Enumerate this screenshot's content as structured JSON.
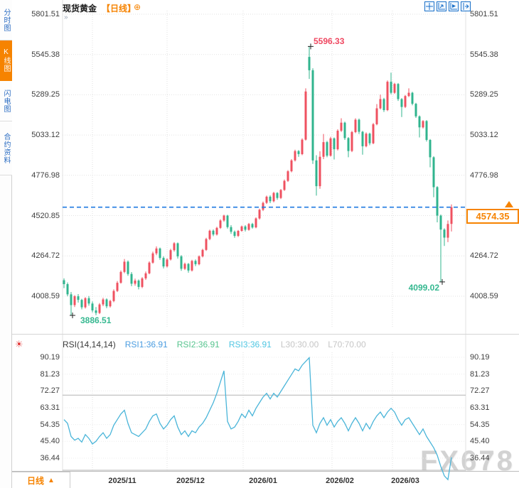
{
  "header": {
    "symbol": "现货黄金",
    "period_tag": "【日线】",
    "plus_icon": "⊕",
    "collapse_icon": "»"
  },
  "toolbar": {
    "icons": [
      "crosshair-pan-icon",
      "auto-scale-icon",
      "chart-forward-icon",
      "shift-right-icon"
    ]
  },
  "sidebar": {
    "tabs": [
      {
        "label": "分时图",
        "selected": false
      },
      {
        "label": "K线图",
        "selected": true
      },
      {
        "label": "闪电图",
        "selected": false
      },
      {
        "label": "合约资料",
        "selected": false
      }
    ]
  },
  "price_tag": {
    "value": "4574.35",
    "color": "#f68300"
  },
  "annotations": {
    "high": "5596.33",
    "low": "4099.02",
    "min": "3886.51"
  },
  "rsi_header": {
    "title": "RSI(14,14,14)",
    "rsi1": "RSI1:36.91",
    "rsi2": "RSI2:36.91",
    "rsi3": "RSI3:36.91",
    "l30": "L30:30.00",
    "l70": "L70:70.00"
  },
  "footer": {
    "period_label": "日线",
    "arrow": "▲"
  },
  "watermark": "FX678",
  "colors": {
    "up": "#ef5160",
    "down": "#30b48e",
    "rsi_line": "#4ab5d9",
    "accent_orange": "#f68300",
    "dashed_price_line": "#1f7ae0",
    "grid": "#e2e2e2",
    "ref_line": "#b4b4b4"
  },
  "chart_data": [
    {
      "type": "candlestick",
      "title": "现货黄金 日线",
      "y_ticks": [
        "5801.51",
        "5545.38",
        "5289.25",
        "5033.12",
        "4776.98",
        "4520.85",
        "4264.72",
        "4008.59"
      ],
      "x_ticks": [
        "2025/11",
        "2025/12",
        "2026/01",
        "2026/02",
        "2026/03"
      ],
      "current_price": 4574.35,
      "up_color_convention": "red-up-green-down",
      "marked_points": [
        {
          "index": 69,
          "field": "h",
          "value": 5596.33,
          "kind": "high"
        },
        {
          "index": 106,
          "field": "l",
          "value": 4099.02,
          "kind": "low"
        },
        {
          "index": 2,
          "field": "l",
          "value": 3886.51,
          "kind": "min"
        }
      ],
      "candles_ohlc": [
        [
          4110,
          4122,
          4060,
          4085
        ],
        [
          4085,
          4096,
          4008,
          4020
        ],
        [
          4020,
          4035,
          3886.51,
          3952
        ],
        [
          3952,
          4015,
          3940,
          4008
        ],
        [
          4008,
          4022,
          3968,
          3985
        ],
        [
          3985,
          3992,
          3925,
          3938
        ],
        [
          3938,
          4002,
          3930,
          3996
        ],
        [
          3996,
          4010,
          3948,
          3962
        ],
        [
          3962,
          3975,
          3905,
          3918
        ],
        [
          3918,
          3940,
          3888,
          3902
        ],
        [
          3902,
          3965,
          3895,
          3956
        ],
        [
          3956,
          3998,
          3945,
          3988
        ],
        [
          3988,
          3995,
          3932,
          3944
        ],
        [
          3944,
          3986,
          3936,
          3978
        ],
        [
          3978,
          4052,
          3970,
          4042
        ],
        [
          4042,
          4105,
          4035,
          4094
        ],
        [
          4094,
          4172,
          4088,
          4163
        ],
        [
          4163,
          4245,
          4155,
          4228
        ],
        [
          4228,
          4236,
          4138,
          4150
        ],
        [
          4150,
          4162,
          4072,
          4088
        ],
        [
          4088,
          4120,
          4075,
          4108
        ],
        [
          4108,
          4115,
          4052,
          4068
        ],
        [
          4068,
          4130,
          4060,
          4122
        ],
        [
          4122,
          4165,
          4112,
          4154
        ],
        [
          4154,
          4230,
          4148,
          4222
        ],
        [
          4222,
          4292,
          4215,
          4281
        ],
        [
          4281,
          4325,
          4270,
          4312
        ],
        [
          4312,
          4318,
          4240,
          4252
        ],
        [
          4252,
          4262,
          4185,
          4198
        ],
        [
          4198,
          4250,
          4190,
          4242
        ],
        [
          4242,
          4310,
          4235,
          4301
        ],
        [
          4301,
          4352,
          4292,
          4345
        ],
        [
          4345,
          4350,
          4248,
          4262
        ],
        [
          4262,
          4270,
          4170,
          4183
        ],
        [
          4183,
          4222,
          4175,
          4214
        ],
        [
          4214,
          4220,
          4158,
          4172
        ],
        [
          4172,
          4240,
          4165,
          4233
        ],
        [
          4233,
          4242,
          4200,
          4212
        ],
        [
          4212,
          4268,
          4205,
          4262
        ],
        [
          4262,
          4310,
          4255,
          4303
        ],
        [
          4303,
          4380,
          4296,
          4372
        ],
        [
          4372,
          4432,
          4365,
          4425
        ],
        [
          4425,
          4433,
          4390,
          4401
        ],
        [
          4401,
          4450,
          4394,
          4443
        ],
        [
          4443,
          4498,
          4436,
          4490
        ],
        [
          4490,
          4527,
          4482,
          4521
        ],
        [
          4521,
          4526,
          4438,
          4448
        ],
        [
          4448,
          4460,
          4405,
          4418
        ],
        [
          4418,
          4426,
          4380,
          4392
        ],
        [
          4392,
          4430,
          4385,
          4424
        ],
        [
          4424,
          4458,
          4418,
          4452
        ],
        [
          4452,
          4460,
          4420,
          4431
        ],
        [
          4431,
          4474,
          4425,
          4468
        ],
        [
          4468,
          4475,
          4438,
          4446
        ],
        [
          4446,
          4510,
          4440,
          4503
        ],
        [
          4503,
          4565,
          4496,
          4558
        ],
        [
          4558,
          4610,
          4550,
          4602
        ],
        [
          4602,
          4648,
          4595,
          4641
        ],
        [
          4641,
          4650,
          4600,
          4612
        ],
        [
          4612,
          4672,
          4605,
          4665
        ],
        [
          4665,
          4670,
          4622,
          4633
        ],
        [
          4633,
          4690,
          4626,
          4684
        ],
        [
          4684,
          4750,
          4678,
          4742
        ],
        [
          4742,
          4810,
          4735,
          4803
        ],
        [
          4803,
          4880,
          4796,
          4872
        ],
        [
          4872,
          4940,
          4865,
          4931
        ],
        [
          4931,
          4938,
          4895,
          4912
        ],
        [
          4912,
          5012,
          4905,
          5004
        ],
        [
          5004,
          5330,
          4998,
          5310
        ],
        [
          5530,
          5596.33,
          5390,
          5445
        ],
        [
          5445,
          5458,
          4850,
          4872
        ],
        [
          4872,
          4905,
          4648,
          4708
        ],
        [
          4708,
          4930,
          4692,
          4895
        ],
        [
          4895,
          5040,
          4880,
          4988
        ],
        [
          4988,
          4996,
          4892,
          4902
        ],
        [
          4902,
          5022,
          4896,
          5012
        ],
        [
          5012,
          5018,
          4878,
          4943
        ],
        [
          4943,
          5070,
          4935,
          5061
        ],
        [
          5061,
          5140,
          5052,
          5112
        ],
        [
          5112,
          5118,
          5002,
          5014
        ],
        [
          5014,
          5020,
          4892,
          4932
        ],
        [
          4932,
          5060,
          4925,
          5052
        ],
        [
          5052,
          5140,
          5045,
          5131
        ],
        [
          5131,
          5138,
          5040,
          5054
        ],
        [
          5054,
          5060,
          4908,
          4962
        ],
        [
          4962,
          5050,
          4955,
          5042
        ],
        [
          5042,
          5048,
          4968,
          4981
        ],
        [
          4981,
          5110,
          4975,
          5102
        ],
        [
          5102,
          5230,
          5095,
          5203
        ],
        [
          5203,
          5290,
          5196,
          5262
        ],
        [
          5262,
          5270,
          5180,
          5192
        ],
        [
          5192,
          5380,
          5185,
          5372
        ],
        [
          5372,
          5430,
          5292,
          5302
        ],
        [
          5302,
          5365,
          5295,
          5358
        ],
        [
          5358,
          5364,
          5250,
          5262
        ],
        [
          5262,
          5268,
          5148,
          5212
        ],
        [
          5212,
          5288,
          5205,
          5281
        ],
        [
          5281,
          5330,
          5275,
          5302
        ],
        [
          5302,
          5308,
          5222,
          5232
        ],
        [
          5232,
          5238,
          5142,
          5152
        ],
        [
          5152,
          5158,
          5018,
          5082
        ],
        [
          5082,
          5128,
          5075,
          5122
        ],
        [
          5122,
          5128,
          4992,
          5002
        ],
        [
          5002,
          5008,
          4828,
          4892
        ],
        [
          4892,
          4898,
          4638,
          4702
        ],
        [
          4702,
          4708,
          4478,
          4521
        ],
        [
          4521,
          4528,
          4099.02,
          4432
        ],
        [
          4432,
          4440,
          4328,
          4381
        ],
        [
          4381,
          4490,
          4352,
          4468
        ],
        [
          4468,
          4592,
          4420,
          4574.35
        ]
      ]
    },
    {
      "type": "line",
      "name": "RSI(14,14,14)",
      "y_ticks": [
        "90.19",
        "81.23",
        "72.27",
        "63.31",
        "54.35",
        "45.40",
        "36.44"
      ],
      "ref_lines": [
        70,
        30
      ],
      "last_value": 36.91,
      "values": [
        57,
        55,
        48,
        46,
        47,
        45,
        49,
        47,
        44,
        45.4,
        48,
        50,
        47,
        49,
        54,
        57,
        60,
        62,
        55,
        50,
        49,
        48,
        50,
        52,
        56,
        59,
        60,
        55,
        52,
        54,
        57,
        59,
        53,
        49,
        51,
        48,
        51,
        50,
        53,
        55,
        58,
        62,
        66,
        71,
        77,
        83,
        56,
        52,
        53,
        56,
        60,
        58,
        62,
        59,
        63,
        66,
        69,
        71,
        68,
        71,
        69,
        72,
        75,
        78,
        81,
        84,
        83,
        86,
        88,
        90,
        54,
        50,
        55,
        58,
        54,
        57,
        53,
        56,
        58,
        55,
        51,
        55,
        58,
        55,
        51,
        55,
        52,
        56,
        59,
        61,
        58,
        61,
        63,
        61,
        57,
        54,
        57,
        58,
        55,
        52,
        49,
        52,
        48,
        45,
        42,
        38,
        32,
        27,
        25,
        36.91
      ]
    }
  ]
}
